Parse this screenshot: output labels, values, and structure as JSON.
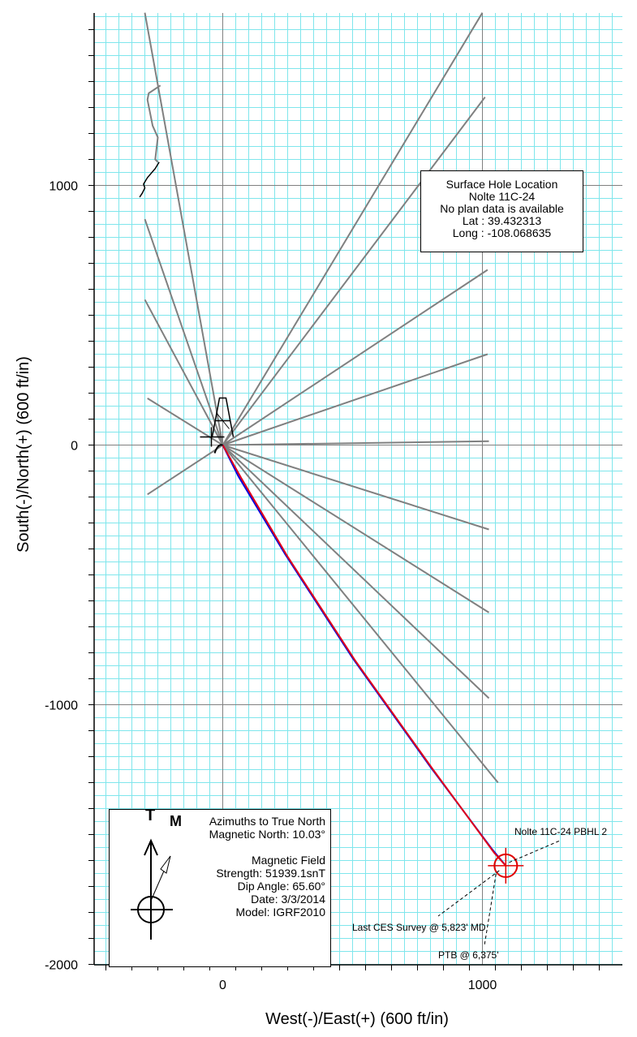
{
  "chart_data": {
    "type": "scatter",
    "xlabel": "West(-)/East(+) (600 ft/in)",
    "ylabel": "South(-)/North(+) (600 ft/in)",
    "xlim": [
      -490,
      1540
    ],
    "ylim": [
      -2000,
      1660
    ],
    "x_ticks": [
      0,
      1000
    ],
    "y_ticks": [
      1000,
      0,
      -1000,
      -2000
    ],
    "grid": "on",
    "offset_wells": [
      [
        [
          0,
          0
        ],
        [
          -300,
          1665
        ]
      ],
      [
        [
          0,
          0
        ],
        [
          -300,
          870
        ]
      ],
      [
        [
          0,
          0
        ],
        [
          -300,
          560
        ]
      ],
      [
        [
          0,
          0
        ],
        [
          -290,
          180
        ]
      ],
      [
        [
          0,
          0
        ],
        [
          -290,
          -190
        ]
      ],
      [
        [
          0,
          0
        ],
        [
          1000,
          1665
        ]
      ],
      [
        [
          0,
          0
        ],
        [
          1010,
          1340
        ]
      ],
      [
        [
          0,
          0
        ],
        [
          1020,
          675
        ]
      ],
      [
        [
          0,
          0
        ],
        [
          1020,
          350
        ]
      ],
      [
        [
          0,
          0
        ],
        [
          1025,
          15
        ]
      ],
      [
        [
          0,
          0
        ],
        [
          1025,
          -325
        ]
      ],
      [
        [
          0,
          0
        ],
        [
          1025,
          -645
        ]
      ],
      [
        [
          0,
          0
        ],
        [
          1025,
          -975
        ]
      ],
      [
        [
          0,
          0
        ],
        [
          1060,
          -1300
        ]
      ]
    ],
    "offset_well_fragment": [
      [
        -240,
        1385
      ],
      [
        -285,
        1355
      ],
      [
        -290,
        1330
      ],
      [
        -270,
        1230
      ],
      [
        -250,
        1185
      ],
      [
        -260,
        1100
      ],
      [
        -250,
        1090
      ]
    ],
    "black_trace": [
      [
        -245,
        1090
      ],
      [
        -260,
        1065
      ],
      [
        -290,
        1030
      ],
      [
        -305,
        1005
      ],
      [
        -300,
        990
      ],
      [
        -310,
        970
      ],
      [
        -320,
        955
      ]
    ],
    "planned_path": [
      [
        0,
        0
      ],
      [
        60,
        -120
      ],
      [
        240,
        -420
      ],
      [
        500,
        -820
      ],
      [
        800,
        -1240
      ],
      [
        1040,
        -1560
      ],
      [
        1090,
        -1620
      ]
    ],
    "survey_path": [
      [
        0,
        0
      ],
      [
        70,
        -125
      ],
      [
        250,
        -430
      ],
      [
        510,
        -830
      ],
      [
        810,
        -1250
      ],
      [
        1045,
        -1570
      ],
      [
        1090,
        -1620
      ]
    ],
    "pbhl_target": {
      "x": 1090,
      "y": -1620,
      "label": "Nolte 11C-24 PBHL 2"
    },
    "callouts": [
      {
        "text": "Nolte 11C-24 PBHL 2"
      },
      {
        "text": "Last CES Survey @ 5,823' MD"
      },
      {
        "text": "PTB @ 6,375'"
      }
    ]
  },
  "surface_hole": {
    "title": "Surface Hole Location",
    "well": "Nolte  11C-24",
    "note": "No plan data is available",
    "lat": "Lat :  39.432313",
    "long": "Long :  -108.068635"
  },
  "north_reference": {
    "t_label": "T",
    "m_label": "M",
    "line1": "Azimuths to True North",
    "line2": "Magnetic North: 10.03°",
    "line3": "Magnetic Field",
    "line4": "Strength: 51939.1snT",
    "line5": "Dip Angle: 65.60°",
    "line6": "Date: 3/3/2014",
    "line7": "Model: IGRF2010"
  }
}
